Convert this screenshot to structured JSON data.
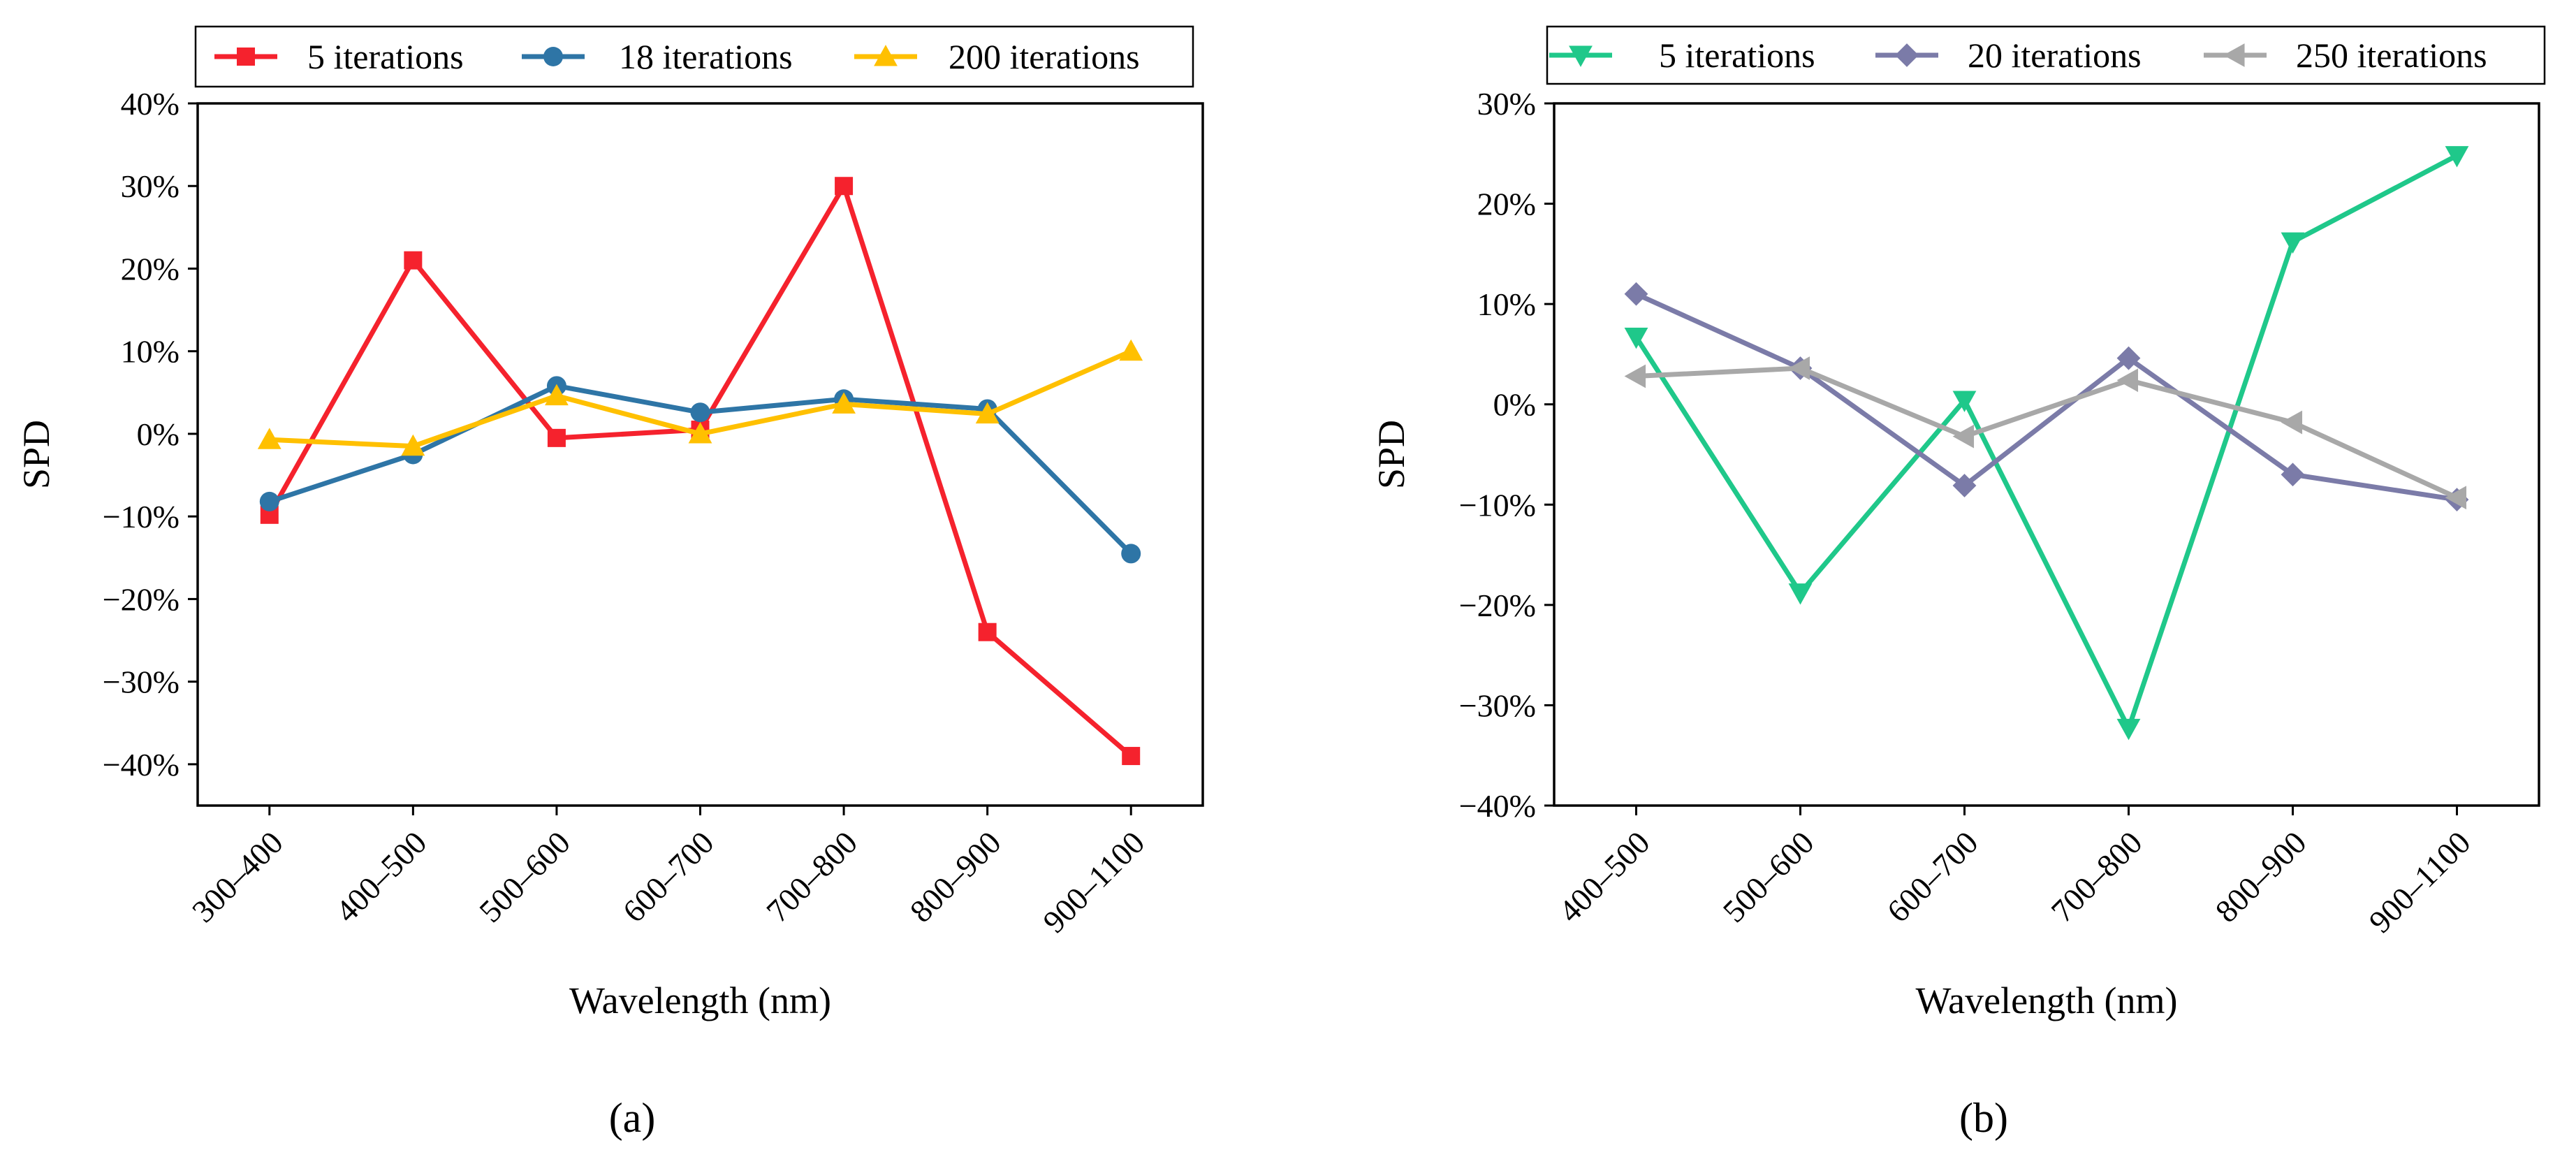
{
  "chart_data": [
    {
      "type": "line",
      "panel_label": "(a)",
      "xlabel": "Wavelength (nm)",
      "ylabel": "SPD",
      "ylim": [
        -45,
        40
      ],
      "yticks": [
        -40,
        -30,
        -20,
        -10,
        0,
        10,
        20,
        30,
        40
      ],
      "ytick_labels": [
        "−40%",
        "−30%",
        "−20%",
        "−10%",
        "0%",
        "10%",
        "20%",
        "30%",
        "40%"
      ],
      "categories": [
        "300–400",
        "400–500",
        "500–600",
        "600–700",
        "700–800",
        "800–900",
        "900–1100"
      ],
      "legend_position": "top",
      "series": [
        {
          "name": "5 iterations",
          "color": "#f5222d",
          "marker": "square",
          "values": [
            -9.8,
            21,
            -0.5,
            0.5,
            30,
            -24,
            -39
          ]
        },
        {
          "name": "18 iterations",
          "color": "#2e75a6",
          "marker": "circle",
          "values": [
            -8.2,
            -2.5,
            5.8,
            2.6,
            4.2,
            3.0,
            -14.5
          ]
        },
        {
          "name": "200 iterations",
          "color": "#ffc000",
          "marker": "triangle-up",
          "values": [
            -0.7,
            -1.5,
            4.6,
            0,
            3.6,
            2.4,
            10
          ]
        }
      ]
    },
    {
      "type": "line",
      "panel_label": "(b)",
      "xlabel": "Wavelength (nm)",
      "ylabel": "SPD",
      "ylim": [
        -40,
        30
      ],
      "yticks": [
        -40,
        -30,
        -20,
        -10,
        0,
        10,
        20,
        30
      ],
      "ytick_labels": [
        "−40%",
        "−30%",
        "−20%",
        "−10%",
        "0%",
        "10%",
        "20%",
        "30%"
      ],
      "categories": [
        "400–500",
        "500–600",
        "600–700",
        "700–800",
        "800–900",
        "900–1100"
      ],
      "legend_position": "top",
      "series": [
        {
          "name": "5 iterations",
          "color": "#1fc88a",
          "marker": "triangle-down",
          "values": [
            6.7,
            -18.8,
            0.4,
            -32.3,
            16.2,
            24.8
          ]
        },
        {
          "name": "20 iterations",
          "color": "#7b7ba8",
          "marker": "diamond",
          "values": [
            11,
            3.6,
            -8.1,
            4.6,
            -7.0,
            -9.5
          ]
        },
        {
          "name": "250 iterations",
          "color": "#a8a8a8",
          "marker": "triangle-left",
          "values": [
            2.8,
            3.6,
            -3.2,
            2.4,
            -1.8,
            -9.3
          ]
        }
      ]
    }
  ]
}
